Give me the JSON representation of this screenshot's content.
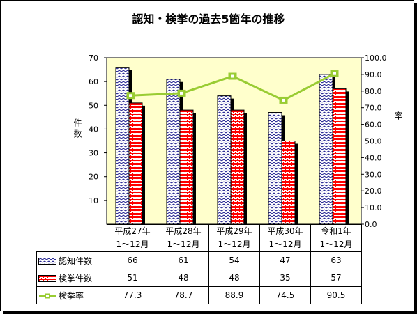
{
  "chart_data": {
    "type": "bar",
    "title": "認知・検挙の過去5箇年の推移",
    "ylabel": "件数",
    "y2label": "率",
    "ylim": [
      0,
      70
    ],
    "y2lim": [
      0,
      100
    ],
    "yticks": [
      "10",
      "20",
      "30",
      "40",
      "50",
      "60",
      "70"
    ],
    "y2ticks": [
      "0.0",
      "10.0",
      "20.0",
      "30.0",
      "40.0",
      "50.0",
      "60.0",
      "70.0",
      "80.0",
      "90.0",
      "100.0"
    ],
    "categories": [
      [
        "平成27年",
        "1～12月"
      ],
      [
        "平成28年",
        "1～12月"
      ],
      [
        "平成29年",
        "1～12月"
      ],
      [
        "平成30年",
        "1～12月"
      ],
      [
        "令和1年",
        "1～12月"
      ]
    ],
    "series": [
      {
        "name": "認知件数",
        "type": "bar",
        "values": [
          66,
          61,
          54,
          47,
          63
        ],
        "labels": [
          "66",
          "61",
          "54",
          "47",
          "63"
        ],
        "color": "#ffffff"
      },
      {
        "name": "検挙件数",
        "type": "bar",
        "values": [
          51,
          48,
          48,
          35,
          57
        ],
        "labels": [
          "51",
          "48",
          "48",
          "35",
          "57"
        ],
        "color": "#ff0000"
      },
      {
        "name": "検挙率",
        "type": "line",
        "axis": "right",
        "values": [
          77.3,
          78.7,
          88.9,
          74.5,
          90.5
        ],
        "labels": [
          "77.3",
          "78.7",
          "88.9",
          "74.5",
          "90.5"
        ],
        "color": "#99cc33"
      }
    ],
    "plot_bg": "#ffffcc",
    "grid": false,
    "legend": "data-table"
  }
}
